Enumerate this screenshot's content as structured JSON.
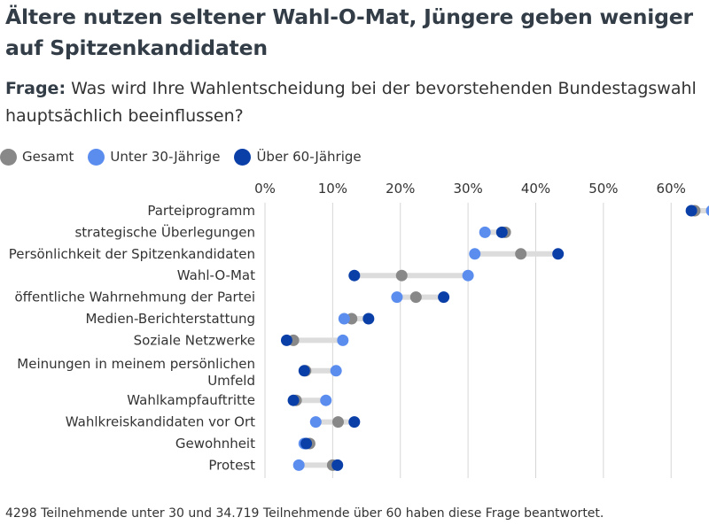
{
  "title": "Ältere nutzen seltener Wahl-O-Mat, Jüngere geben weniger auf Spitzenkandidaten",
  "question": {
    "label": "Frage:",
    "text": " Was wird Ihre Wahlentscheidung bei der bevorstehenden Bundestagswahl hauptsächlich beeinflussen?"
  },
  "legend": [
    {
      "name": "Gesamt",
      "color": "#888888"
    },
    {
      "name": "Unter 30-Jährige",
      "color": "#5b8def"
    },
    {
      "name": "Über 60-Jährige",
      "color": "#0b3fa8"
    }
  ],
  "footnote": "4298 Teilnehmende unter 30 und 34.719 Teilnehmende über 60 haben diese Frage beantwortet.",
  "chart_data": {
    "type": "dot-range",
    "x_ticks": [
      "0%",
      "10%",
      "20%",
      "30%",
      "40%",
      "50%",
      "60%"
    ],
    "xlim": [
      0,
      65.6
    ],
    "series_order": [
      "Gesamt",
      "Unter 30-Jährige",
      "Über 60-Jährige"
    ],
    "categories": [
      {
        "label": [
          "Parteiprogramm"
        ],
        "Gesamt": 63.5,
        "Unter 30-Jährige": 66.0,
        "Über 60-Jährige": 63.0
      },
      {
        "label": [
          "strategische Überlegungen"
        ],
        "Gesamt": 35.5,
        "Unter 30-Jährige": 32.5,
        "Über 60-Jährige": 35.0
      },
      {
        "label": [
          "Persönlichkeit der Spitzenkandidaten"
        ],
        "Gesamt": 37.8,
        "Unter 30-Jährige": 31.0,
        "Über 60-Jährige": 43.3
      },
      {
        "label": [
          "Wahl-O-Mat"
        ],
        "Gesamt": 20.2,
        "Unter 30-Jährige": 30.0,
        "Über 60-Jährige": 13.2
      },
      {
        "label": [
          "öffentliche Wahrnehmung der Partei"
        ],
        "Gesamt": 22.3,
        "Unter 30-Jährige": 19.5,
        "Über 60-Jährige": 26.4
      },
      {
        "label": [
          "Medien-Berichterstattung"
        ],
        "Gesamt": 12.8,
        "Unter 30-Jährige": 11.7,
        "Über 60-Jährige": 15.3
      },
      {
        "label": [
          "Soziale Netzwerke"
        ],
        "Gesamt": 4.2,
        "Unter 30-Jährige": 11.5,
        "Über 60-Jährige": 3.2
      },
      {
        "label": [
          "Meinungen in meinem persönlichen",
          "Umfeld"
        ],
        "Gesamt": 6.0,
        "Unter 30-Jährige": 10.5,
        "Über 60-Jährige": 5.8
      },
      {
        "label": [
          "Wahlkampfauftritte"
        ],
        "Gesamt": 4.6,
        "Unter 30-Jährige": 9.0,
        "Über 60-Jährige": 4.2
      },
      {
        "label": [
          "Wahlkreiskandidaten vor Ort"
        ],
        "Gesamt": 10.8,
        "Unter 30-Jährige": 7.5,
        "Über 60-Jährige": 13.2
      },
      {
        "label": [
          "Gewohnheit"
        ],
        "Gesamt": 6.6,
        "Unter 30-Jährige": 5.8,
        "Über 60-Jährige": 6.1
      },
      {
        "label": [
          "Protest"
        ],
        "Gesamt": 10.0,
        "Unter 30-Jährige": 5.0,
        "Über 60-Jährige": 10.7
      }
    ]
  }
}
